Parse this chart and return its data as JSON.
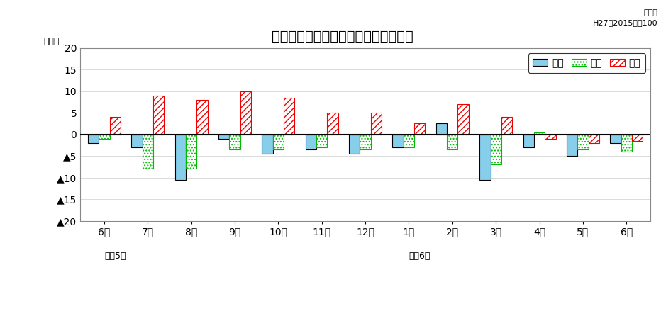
{
  "title": "生産・出荷・在庫の前年同月比の推移",
  "subtitle": "原指数\nH27（2015）＝100",
  "ylabel": "（％）",
  "months": [
    "6月",
    "7月",
    "8月",
    "9月",
    "10月",
    "11月",
    "12月",
    "1月",
    "2月",
    "3月",
    "4月",
    "5月",
    "6月"
  ],
  "year_labels": [
    [
      "令和5年",
      0
    ],
    [
      "令和6年",
      7
    ]
  ],
  "seisan": [
    -2.0,
    -3.0,
    -10.5,
    -1.0,
    -4.5,
    -3.5,
    -4.5,
    -3.0,
    2.5,
    -10.5,
    -3.0,
    -5.0,
    -2.0
  ],
  "shukka": [
    -1.0,
    -8.0,
    -8.0,
    -3.5,
    -3.5,
    -3.0,
    -3.5,
    -3.0,
    -3.5,
    -7.0,
    0.5,
    -3.5,
    -4.0
  ],
  "zaiko": [
    4.0,
    9.0,
    8.0,
    10.0,
    8.5,
    5.0,
    5.0,
    2.5,
    7.0,
    4.0,
    -1.0,
    -2.0,
    -1.5
  ],
  "ylim": [
    -20,
    20
  ],
  "yticks": [
    -20,
    -15,
    -10,
    -5,
    0,
    5,
    10,
    15,
    20
  ],
  "seisan_color": "#87CEEB",
  "shukka_hatch": "....",
  "zaiko_hatch": "////",
  "seisan_edge": "#000000",
  "shukka_edge": "#00BB00",
  "zaiko_edge": "#EE0000",
  "bar_width": 0.25,
  "legend_labels": [
    "生産",
    "出荷",
    "在庫"
  ]
}
